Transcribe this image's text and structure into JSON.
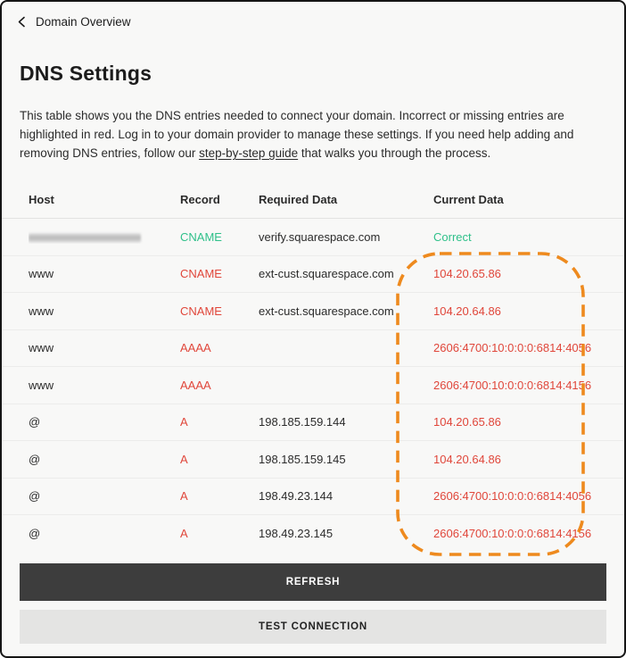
{
  "header": {
    "back_label": "Domain Overview",
    "back_icon": "chevron-left-icon"
  },
  "page": {
    "title": "DNS Settings",
    "description": {
      "text_before_link": "This table shows you the DNS entries needed to connect your domain. Incorrect or missing entries are highlighted in red. Log in to your domain provider to manage these settings. If you need help adding and removing DNS entries, follow our ",
      "link_text": "step-by-step guide",
      "text_after_link": " that walks you through the process."
    }
  },
  "table": {
    "columns": [
      "Host",
      "Record",
      "Required Data",
      "Current Data"
    ],
    "rows": [
      {
        "host": "",
        "host_redacted": true,
        "record": "CNAME",
        "required": "verify.squarespace.com",
        "current": "Correct",
        "status": "ok"
      },
      {
        "host": "www",
        "host_redacted": false,
        "record": "CNAME",
        "required": "ext-cust.squarespace.com",
        "current": "104.20.65.86",
        "status": "error"
      },
      {
        "host": "www",
        "host_redacted": false,
        "record": "CNAME",
        "required": "ext-cust.squarespace.com",
        "current": "104.20.64.86",
        "status": "error"
      },
      {
        "host": "www",
        "host_redacted": false,
        "record": "AAAA",
        "required": "",
        "current": "2606:4700:10:0:0:0:6814:4056",
        "status": "error"
      },
      {
        "host": "www",
        "host_redacted": false,
        "record": "AAAA",
        "required": "",
        "current": "2606:4700:10:0:0:0:6814:4156",
        "status": "error"
      },
      {
        "host": "@",
        "host_redacted": false,
        "record": "A",
        "required": "198.185.159.144",
        "current": "104.20.65.86",
        "status": "error"
      },
      {
        "host": "@",
        "host_redacted": false,
        "record": "A",
        "required": "198.185.159.145",
        "current": "104.20.64.86",
        "status": "error"
      },
      {
        "host": "@",
        "host_redacted": false,
        "record": "A",
        "required": "198.49.23.144",
        "current": "2606:4700:10:0:0:0:6814:4056",
        "status": "error"
      },
      {
        "host": "@",
        "host_redacted": false,
        "record": "A",
        "required": "198.49.23.145",
        "current": "2606:4700:10:0:0:0:6814:4156",
        "status": "error"
      }
    ]
  },
  "annotation": {
    "name": "current-data-highlight",
    "shape": "dashed-rounded-rectangle"
  },
  "buttons": {
    "refresh": "REFRESH",
    "test_connection": "TEST CONNECTION"
  },
  "colors": {
    "ok": "#2fc08a",
    "error": "#e0463a",
    "highlight": "#ee8a1e",
    "button_dark": "#3d3d3d",
    "button_light": "#e4e4e3",
    "background": "#f8f8f7"
  }
}
